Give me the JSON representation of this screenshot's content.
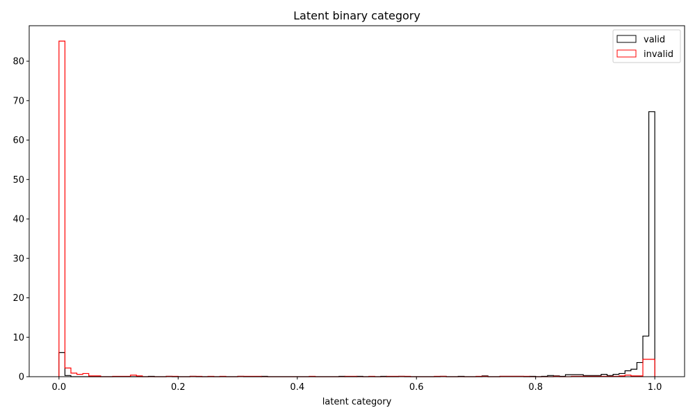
{
  "chart_data": {
    "type": "histogram",
    "title": "Latent binary category",
    "xlabel": "latent category",
    "ylabel": "",
    "xlim": [
      -0.05,
      1.05
    ],
    "ylim": [
      0,
      89
    ],
    "xticks": [
      "0.0",
      "0.2",
      "0.4",
      "0.6",
      "0.8",
      "1.0"
    ],
    "yticks": [
      "0",
      "10",
      "20",
      "30",
      "40",
      "50",
      "60",
      "70",
      "80"
    ],
    "xtick_values": [
      0.0,
      0.2,
      0.4,
      0.6,
      0.8,
      1.0
    ],
    "ytick_values": [
      0,
      10,
      20,
      30,
      40,
      50,
      60,
      70,
      80
    ],
    "grid": false,
    "legend_position": "top-right",
    "bin_edges_range": [
      0.0,
      1.0
    ],
    "bin_count": 100,
    "series": [
      {
        "name": "valid",
        "color": "#000000",
        "values": [
          6.1,
          0.3,
          0,
          0,
          0,
          0,
          0,
          0,
          0,
          0,
          0,
          0,
          0,
          0,
          0,
          0.1,
          0,
          0,
          0.1,
          0,
          0,
          0,
          0.1,
          0,
          0,
          0,
          0,
          0,
          0,
          0,
          0.1,
          0,
          0,
          0,
          0.1,
          0,
          0,
          0,
          0,
          0,
          0,
          0,
          0,
          0,
          0,
          0,
          0,
          0.1,
          0,
          0,
          0.1,
          0,
          0,
          0,
          0.1,
          0,
          0,
          0.1,
          0,
          0,
          0,
          0,
          0,
          0,
          0.1,
          0,
          0,
          0.1,
          0,
          0,
          0,
          0.2,
          0,
          0,
          0.1,
          0.1,
          0.1,
          0.1,
          0,
          0.1,
          0,
          0.1,
          0.3,
          0.2,
          0.1,
          0.5,
          0.5,
          0.5,
          0.3,
          0.3,
          0.3,
          0.6,
          0.3,
          0.6,
          0.8,
          1.5,
          1.9,
          3.6,
          10.3,
          67.2
        ]
      },
      {
        "name": "invalid",
        "color": "#ff0000",
        "values": [
          85.1,
          2.2,
          0.9,
          0.6,
          0.8,
          0.2,
          0.2,
          0,
          0,
          0.1,
          0.1,
          0.1,
          0.4,
          0.2,
          0,
          0,
          0,
          0,
          0.1,
          0.1,
          0,
          0,
          0.1,
          0.1,
          0,
          0.1,
          0,
          0.1,
          0,
          0,
          0.1,
          0.1,
          0.1,
          0.1,
          0,
          0,
          0,
          0,
          0,
          0,
          0,
          0,
          0.1,
          0,
          0,
          0,
          0,
          0,
          0.1,
          0.1,
          0,
          0,
          0.1,
          0,
          0,
          0.1,
          0.1,
          0.1,
          0.1,
          0,
          0,
          0,
          0,
          0.1,
          0.1,
          0,
          0,
          0,
          0,
          0,
          0.1,
          0.1,
          0,
          0,
          0.1,
          0.1,
          0.1,
          0.1,
          0.1,
          0,
          0,
          0,
          0,
          0.1,
          0,
          0,
          0.1,
          0.1,
          0.1,
          0.1,
          0.1,
          0.1,
          0.1,
          0.1,
          0.2,
          0.4,
          0.2,
          0.2,
          4.4,
          4.4
        ]
      }
    ]
  }
}
